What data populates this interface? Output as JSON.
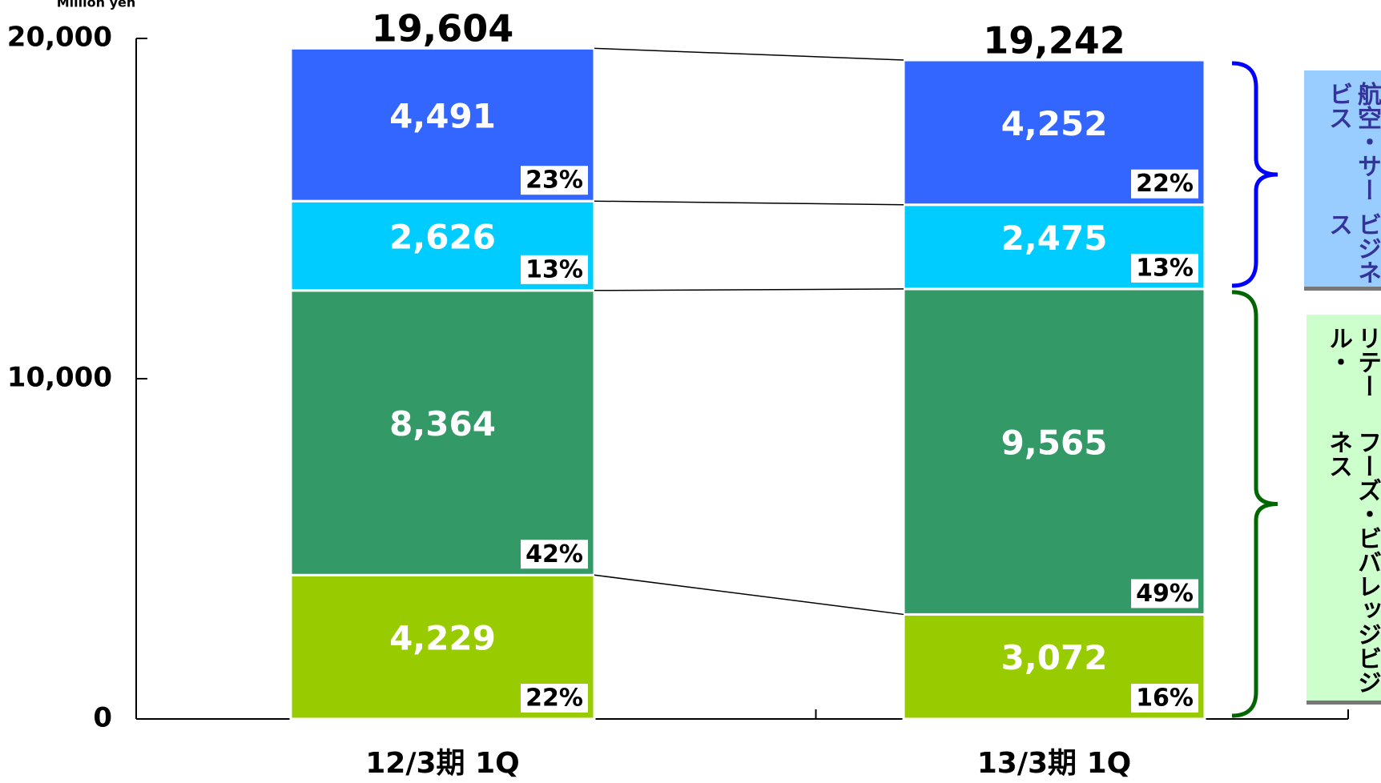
{
  "chart_data": {
    "type": "stacked_bar",
    "y_label": "Million yen",
    "categories": [
      "12/3期 1Q",
      "13/3期 1Q"
    ],
    "ylim": [
      0,
      20000
    ],
    "yticks": [
      0,
      {
        "value": 10000,
        "label": "10,000"
      },
      {
        "value": 20000,
        "label": "20,000"
      }
    ],
    "totals": [
      19604,
      19242
    ],
    "total_labels": [
      "19,604",
      "19,242"
    ],
    "series": [
      {
        "color": "#99cc00",
        "values": [
          4229,
          3072
        ],
        "value_labels": [
          "4,229",
          "3,072"
        ],
        "percent": [
          22,
          16
        ],
        "percent_labels": [
          "22%",
          "16%"
        ]
      },
      {
        "color": "#339966",
        "values": [
          8364,
          9565
        ],
        "value_labels": [
          "8,364",
          "9,565"
        ],
        "percent": [
          42,
          49
        ],
        "percent_labels": [
          "42%",
          "49%"
        ]
      },
      {
        "color": "#00ccff",
        "values": [
          2626,
          2475
        ],
        "value_labels": [
          "2,626",
          "2,475"
        ],
        "percent": [
          13,
          13
        ],
        "percent_labels": [
          "13%",
          "13%"
        ]
      },
      {
        "color": "#3366ff",
        "values": [
          4491,
          4252
        ],
        "value_labels": [
          "4,491",
          "4,252"
        ],
        "percent": [
          23,
          22
        ],
        "percent_labels": [
          "23%",
          "22%"
        ]
      }
    ],
    "groups": [
      {
        "lines": [
          "航空・サービス",
          "ビジネス"
        ],
        "color": "#0000ff",
        "fill": "#99ccff"
      },
      {
        "lines": [
          "リテール・",
          "フーズ・ビバレッジビジネス"
        ],
        "color": "#006600",
        "fill": "#ccffcc"
      }
    ]
  }
}
